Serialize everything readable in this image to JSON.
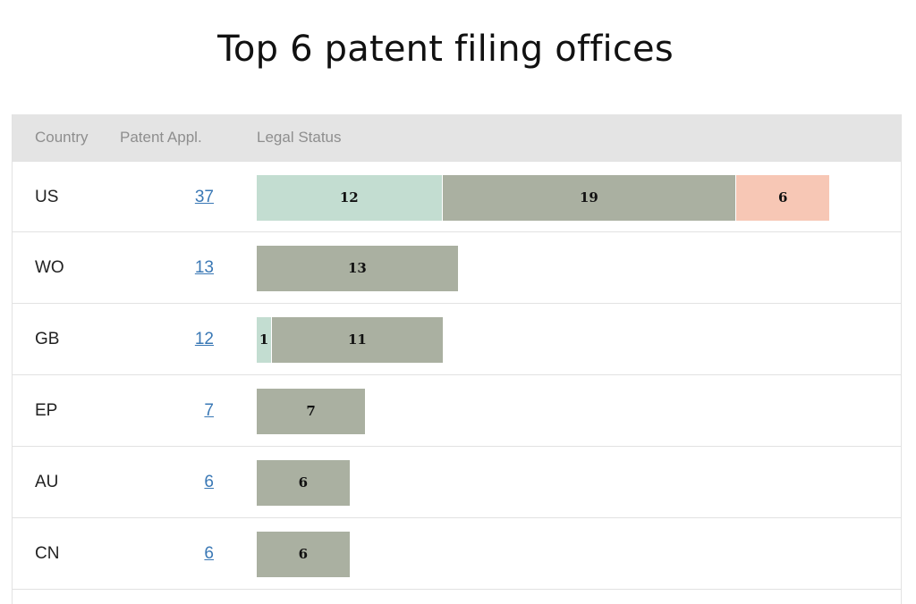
{
  "title": "Top 6 patent filing offices",
  "columns": {
    "country": "Country",
    "appl": "Patent Appl.",
    "status": "Legal Status"
  },
  "colors": {
    "teal": "#c3ddd1",
    "grey": "#aab0a1",
    "salmon": "#f7c7b5",
    "link": "#3a78b5"
  },
  "chart_data": {
    "type": "table",
    "title": "Top 6 patent filing offices",
    "columns": [
      "Country",
      "Patent Appl.",
      "Legal Status"
    ],
    "rows": [
      {
        "country": "US",
        "appl": "37",
        "segments": [
          {
            "value": 12,
            "color": "teal"
          },
          {
            "value": 19,
            "color": "grey"
          },
          {
            "value": 6,
            "color": "salmon"
          }
        ]
      },
      {
        "country": "WO",
        "appl": "13",
        "segments": [
          {
            "value": 13,
            "color": "grey"
          }
        ]
      },
      {
        "country": "GB",
        "appl": "12",
        "segments": [
          {
            "value": 1,
            "color": "teal"
          },
          {
            "value": 11,
            "color": "grey"
          }
        ]
      },
      {
        "country": "EP",
        "appl": "7",
        "segments": [
          {
            "value": 7,
            "color": "grey"
          }
        ]
      },
      {
        "country": "AU",
        "appl": "6",
        "segments": [
          {
            "value": 6,
            "color": "grey"
          }
        ]
      },
      {
        "country": "CN",
        "appl": "6",
        "segments": [
          {
            "value": 6,
            "color": "grey"
          }
        ]
      }
    ]
  }
}
